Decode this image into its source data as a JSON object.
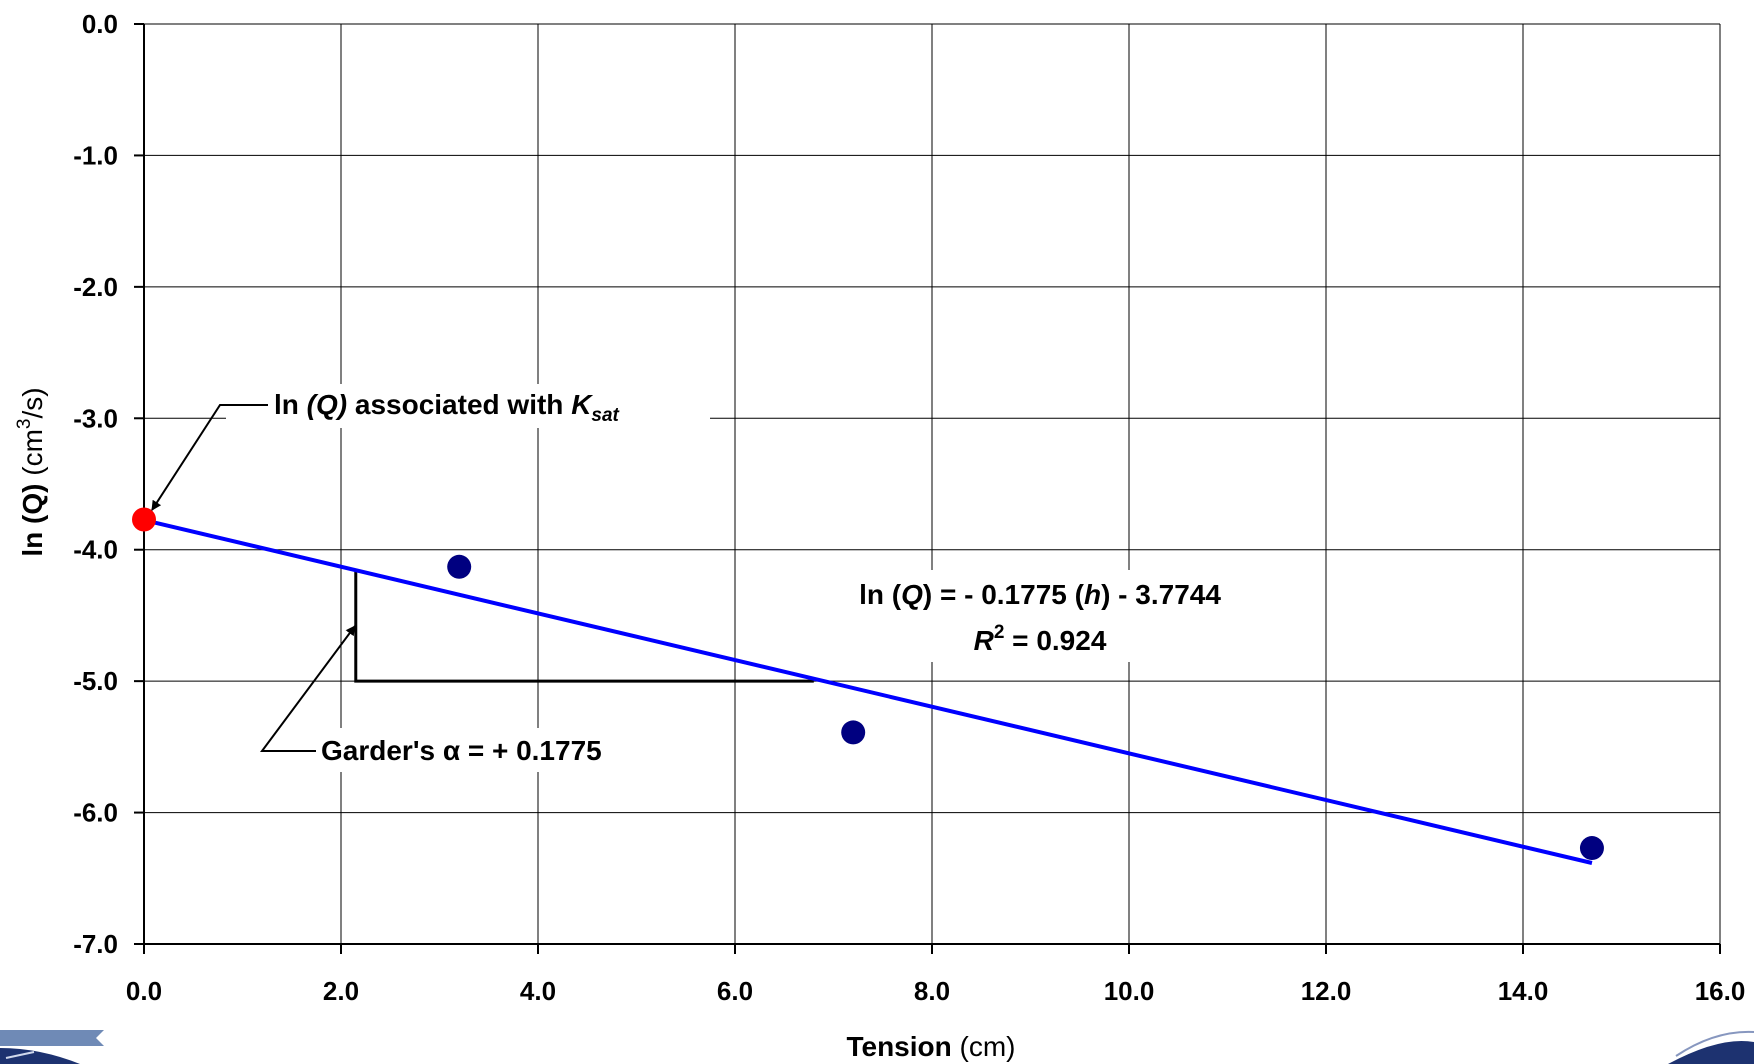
{
  "chart_data": {
    "type": "scatter",
    "xlabel": {
      "bold": "Tension",
      "normal": " (cm)"
    },
    "ylabel": {
      "bold": "ln (Q)",
      "normal_pre": " (cm",
      "sup": "3",
      "normal_post": "/s)"
    },
    "xlim": [
      0,
      16
    ],
    "ylim": [
      -7,
      0
    ],
    "grid": true,
    "x_ticks": [
      "0.0",
      "2.0",
      "4.0",
      "6.0",
      "8.0",
      "10.0",
      "12.0",
      "14.0",
      "16.0"
    ],
    "y_ticks": [
      "0.0",
      "-1.0",
      "-2.0",
      "-3.0",
      "-4.0",
      "-5.0",
      "-6.0",
      "-7.0"
    ],
    "series": [
      {
        "kind": "points",
        "color": "#000080",
        "points": [
          {
            "x": 3.2,
            "y": -4.13
          },
          {
            "x": 7.2,
            "y": -5.39
          },
          {
            "x": 14.7,
            "y": -6.27
          }
        ]
      },
      {
        "kind": "point",
        "color": "#ff0000",
        "points": [
          {
            "x": 0.0,
            "y": -3.77
          }
        ]
      },
      {
        "kind": "trendline",
        "color": "#0000ff",
        "slope": -0.1775,
        "intercept": -3.7744,
        "x_range": [
          0,
          14.7
        ]
      }
    ],
    "slope_triangle": {
      "x": [
        2.15,
        6.8
      ],
      "y": [
        -4.16,
        -5.0
      ]
    },
    "annotations": {
      "ksat": {
        "pre": "ln ",
        "q": "(Q)",
        "mid": " associated with ",
        "k": "K",
        "sub": "sat"
      },
      "equation": {
        "a": "ln (",
        "q": "Q",
        "b": ") = - 0.1775 (",
        "h": "h",
        "c": ") - 3.7744"
      },
      "r2": {
        "r": "R",
        "sup": "2",
        "rest": " = 0.924"
      },
      "garder": "Garder's α = + 0.1775"
    }
  }
}
